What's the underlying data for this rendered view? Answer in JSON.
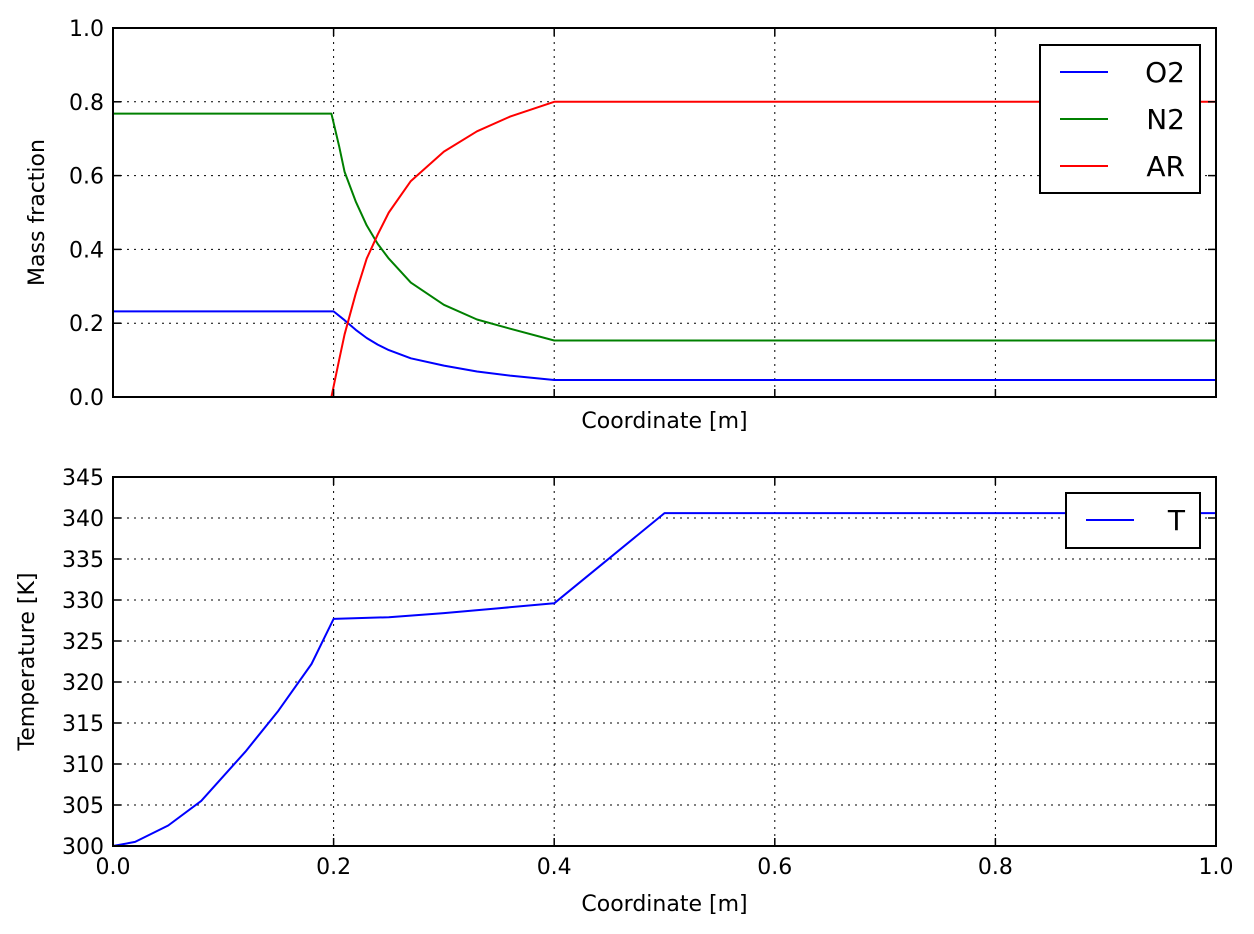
{
  "chart_data": [
    {
      "type": "line",
      "xlabel": "Coordinate [m]",
      "ylabel": "Mass fraction",
      "xlim": [
        0,
        1
      ],
      "ylim": [
        0,
        1
      ],
      "xticks": [
        0,
        0.2,
        0.4,
        0.6,
        0.8,
        1.0
      ],
      "xtick_labels_shown": false,
      "yticks": [
        0,
        0.2,
        0.4,
        0.6,
        0.8,
        1.0
      ],
      "ytick_labels": [
        "0.0",
        "0.2",
        "0.4",
        "0.6",
        "0.8",
        "1.0"
      ],
      "grid": true,
      "legend_position": "top-right",
      "series": [
        {
          "name": "O2",
          "color": "#0000ff",
          "x": [
            0,
            0.2,
            0.21,
            0.22,
            0.23,
            0.24,
            0.25,
            0.27,
            0.3,
            0.33,
            0.36,
            0.4,
            1.0
          ],
          "y": [
            0.232,
            0.232,
            0.208,
            0.182,
            0.16,
            0.142,
            0.127,
            0.105,
            0.085,
            0.069,
            0.058,
            0.046,
            0.046
          ]
        },
        {
          "name": "N2",
          "color": "#008000",
          "x": [
            0,
            0.198,
            0.205,
            0.21,
            0.22,
            0.23,
            0.24,
            0.25,
            0.27,
            0.3,
            0.33,
            0.36,
            0.4,
            1.0
          ],
          "y": [
            0.768,
            0.768,
            0.68,
            0.61,
            0.53,
            0.465,
            0.415,
            0.375,
            0.31,
            0.25,
            0.21,
            0.185,
            0.153,
            0.153
          ]
        },
        {
          "name": "AR",
          "color": "#ff0000",
          "x": [
            0,
            0.198,
            0.205,
            0.21,
            0.22,
            0.23,
            0.24,
            0.25,
            0.27,
            0.3,
            0.33,
            0.36,
            0.4,
            1.0
          ],
          "y": [
            0,
            0,
            0.1,
            0.17,
            0.28,
            0.375,
            0.44,
            0.5,
            0.585,
            0.665,
            0.72,
            0.76,
            0.8,
            0.8
          ]
        }
      ]
    },
    {
      "type": "line",
      "xlabel": "Coordinate [m]",
      "ylabel": "Temperature [K]",
      "xlim": [
        0,
        1
      ],
      "ylim": [
        300,
        345
      ],
      "xticks": [
        0,
        0.2,
        0.4,
        0.6,
        0.8,
        1.0
      ],
      "xtick_labels": [
        "0.0",
        "0.2",
        "0.4",
        "0.6",
        "0.8",
        "1.0"
      ],
      "yticks": [
        300,
        305,
        310,
        315,
        320,
        325,
        330,
        335,
        340,
        345
      ],
      "ytick_labels": [
        "300",
        "305",
        "310",
        "315",
        "320",
        "325",
        "330",
        "335",
        "340",
        "345"
      ],
      "grid": true,
      "legend_position": "top-right",
      "series": [
        {
          "name": "T",
          "color": "#0000ff",
          "x": [
            0,
            0.02,
            0.05,
            0.08,
            0.1,
            0.12,
            0.15,
            0.18,
            0.2,
            0.25,
            0.3,
            0.35,
            0.4,
            0.45,
            0.5,
            1.0
          ],
          "y": [
            300.0,
            300.5,
            302.5,
            305.5,
            308.5,
            311.5,
            316.5,
            322.2,
            327.7,
            327.9,
            328.4,
            329.0,
            329.6,
            335.1,
            340.6,
            340.6
          ]
        }
      ]
    }
  ]
}
